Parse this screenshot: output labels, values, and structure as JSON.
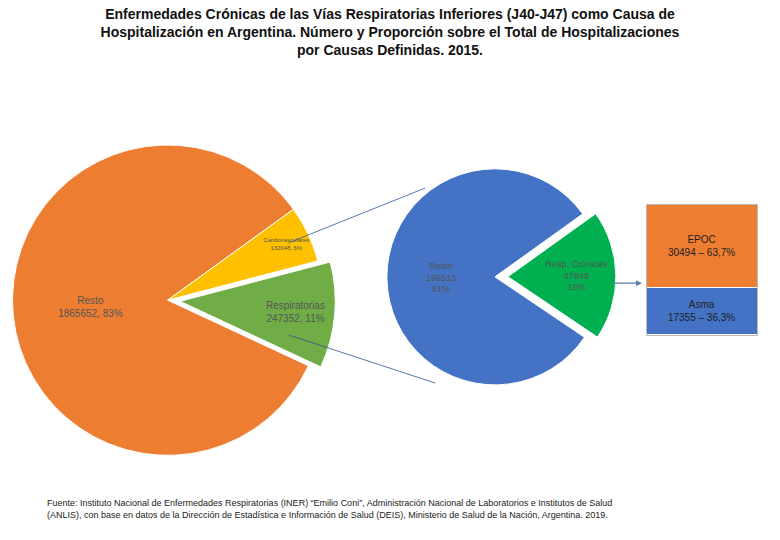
{
  "chart_data": [
    {
      "type": "pie",
      "title": "Enfermedades Crónicas de las Vías Respiratorias Inferiores (J40-J47) como Causa de\nHospitalización en Argentina. Número y Proporción sobre el Total de Hospitalizaciones\npor Causas Definidas. 2015.",
      "categories": [
        "Resto",
        "Cardiovasculares",
        "Respiratorias"
      ],
      "values": [
        1865652,
        132048,
        247352
      ],
      "value_labels": [
        "1865652, 83%",
        "132048, 6%",
        "247352, 11%"
      ],
      "colors": [
        "#ed7d31",
        "#ffc000",
        "#70ad47"
      ],
      "data_labels": true,
      "annotations": [
        "Fuente: Instituto Nacional de Enfermedades Respiratorias (INER) “Emilio Coni”, Administración Nacional de Laboratorios e Institutos de Salud\n(ANLIS), con base en datos de la Dirección de Estadística e Información de Salud (DEIS), Ministerio de Salud de la Nación, Argentina. 2019."
      ]
    },
    {
      "type": "pie",
      "categories": [
        "Resto",
        "Resp. Crónicas"
      ],
      "values": [
        199513,
        47849
      ],
      "value_labels": [
        "199513\n81%",
        "47849\n19%"
      ],
      "colors": [
        "#4472c4",
        "#00b050"
      ],
      "data_labels": true
    },
    {
      "type": "bar",
      "stacked": true,
      "categories": [
        null
      ],
      "series": [
        {
          "name": "EPOC",
          "color": "#ed7d31",
          "values": [
            63.7
          ],
          "value_labels": [
            "30494 – 63,7%"
          ]
        },
        {
          "name": "Asma",
          "color": "#4472c4",
          "values": [
            36.3
          ],
          "value_labels": [
            "17355 – 36,3%"
          ]
        }
      ],
      "ylim": [
        0,
        100
      ],
      "tick_labels": false,
      "data_labels": true
    }
  ]
}
